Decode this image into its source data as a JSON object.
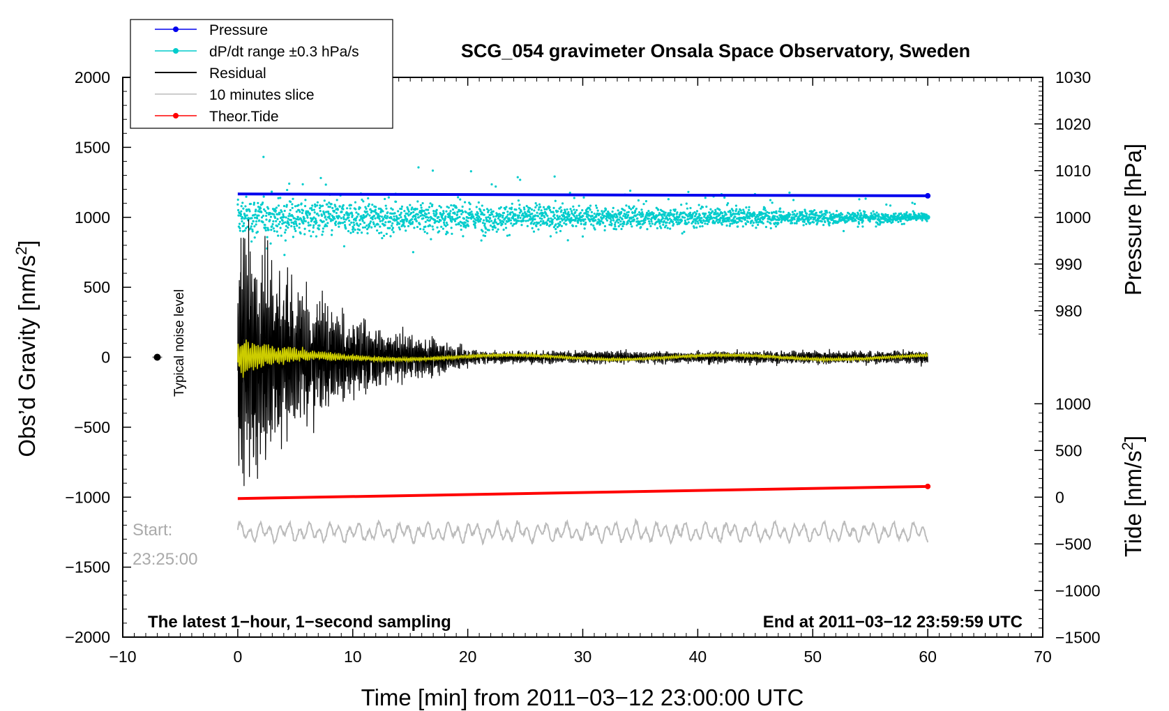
{
  "chart_data": {
    "type": "line",
    "title": "SCG_054 gravimeter Onsala Space Observatory, Sweden",
    "xlabel": "Time [min] from 2011−03−12 23:00:00 UTC",
    "ylabel_left": "Obs’d Gravity [nm/s",
    "ylabel_left_sup": "2",
    "ylabel_left_end": "]",
    "ylabel_right_pressure": "Pressure [hPa]",
    "ylabel_right_tide": "Tide [nm/s",
    "ylabel_right_tide_sup": "2",
    "ylabel_right_tide_end": "]",
    "xlim": [
      -10,
      70
    ],
    "ylim": [
      -2000,
      2000
    ],
    "pressure_lim": [
      970,
      1030
    ],
    "tide_lim": [
      -1500,
      1000
    ],
    "x_ticks": [
      -10,
      0,
      10,
      20,
      30,
      40,
      50,
      60,
      70
    ],
    "x_tick_labels": [
      "−10",
      "0",
      "10",
      "20",
      "30",
      "40",
      "50",
      "60",
      "70"
    ],
    "y_ticks": [
      -2000,
      -1500,
      -1000,
      -500,
      0,
      500,
      1000,
      1500,
      2000
    ],
    "y_tick_labels": [
      "−2000",
      "−1500",
      "−1000",
      "−500",
      "0",
      "500",
      "1000",
      "1500",
      "2000"
    ],
    "pressure_ticks": [
      980,
      990,
      1000,
      1010,
      1020,
      1030
    ],
    "pressure_tick_labels": [
      "980",
      "990",
      "1000",
      "1010",
      "1020",
      "1030"
    ],
    "tide_ticks": [
      -1500,
      -1000,
      -500,
      0,
      500,
      1000
    ],
    "tide_tick_labels": [
      "−1500",
      "−1000",
      "−500",
      "0",
      "500",
      "1000"
    ],
    "legend": [
      {
        "label": "Pressure",
        "color": "#0000ee",
        "marker": true
      },
      {
        "label": "dP/dt range ±0.3 hPa/s",
        "color": "#00cccc",
        "marker": true
      },
      {
        "label": "Residual",
        "color": "#000000",
        "marker": false
      },
      {
        "label": "10 minutes slice",
        "color": "#bbbbbb",
        "marker": false
      },
      {
        "label": "Theor.Tide",
        "color": "#ff0000",
        "marker": true
      }
    ],
    "series": [
      {
        "name": "Pressure",
        "axis": "pressure",
        "unit": "hPa",
        "color": "#0000ee",
        "x": [
          0,
          60
        ],
        "values": [
          1005.0,
          1004.6
        ]
      },
      {
        "name": "dP/dt range ±0.3 hPa/s",
        "axis": "gravity",
        "color": "#00cccc",
        "x": [
          0,
          60
        ],
        "center": 1000,
        "spread_start": 260,
        "spread_end": 60
      },
      {
        "name": "Residual",
        "axis": "gravity",
        "color": "#000000",
        "x": [
          0,
          60
        ],
        "center": 0,
        "amplitude_peak": 850,
        "decay_to_min": 20,
        "amplitude_floor": 45
      },
      {
        "name": "Residual (filtered)",
        "axis": "gravity",
        "color": "#cccc00",
        "x": [
          0,
          60
        ],
        "center": 0,
        "amplitude_peak": 150
      },
      {
        "name": "10 minutes slice",
        "axis": "gravity",
        "color": "#bbbbbb",
        "x": [
          0,
          60
        ],
        "center": -1250,
        "amplitude": 80
      },
      {
        "name": "Theor.Tide",
        "axis": "tide",
        "unit": "nm/s²",
        "color": "#ff0000",
        "x": [
          0,
          60
        ],
        "values": [
          -15,
          115
        ]
      }
    ],
    "noise_marker": {
      "x": -7,
      "y": 0,
      "label": "Typical noise level"
    },
    "annotations": {
      "start_label": "Start:",
      "start_time": "23:25:00",
      "bottom_left": "The latest 1−hour, 1−second sampling",
      "bottom_right": "End at 2011−03−12 23:59:59 UTC"
    }
  }
}
